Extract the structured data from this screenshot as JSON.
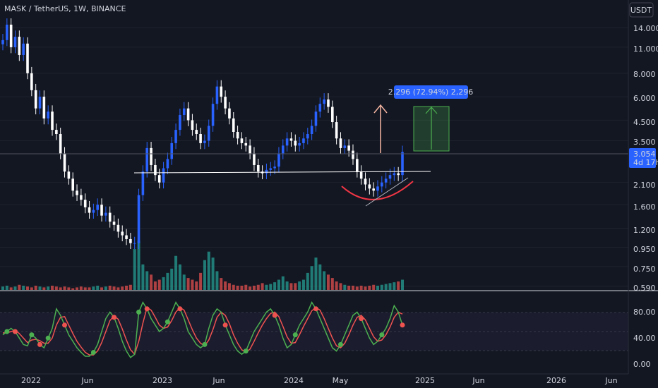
{
  "header": {
    "symbol_title": "MASK / TetherUS, 1W, BINANCE",
    "currency_button": "USDT"
  },
  "price_axis": {
    "ticks": [
      "14.000",
      "11.000",
      "8.000",
      "6.000",
      "4.500",
      "3.500",
      "2.100",
      "1.600",
      "1.200",
      "0.950",
      "0.750",
      "0.590"
    ],
    "scale": "log"
  },
  "last_price": {
    "price": "3.054",
    "countdown": "4d 17h",
    "color": "#2962ff"
  },
  "measure_label": "2.296 (72.94%) 2,296",
  "oscillator_axis": {
    "ticks": [
      "80.00",
      "40.00",
      "0.00"
    ]
  },
  "time_axis": {
    "ticks": [
      "2022",
      "Jun",
      "2023",
      "Jun",
      "2024",
      "May",
      "2025",
      "Jun",
      "2026",
      "Jun"
    ]
  },
  "colors": {
    "background": "#131722",
    "bull_candle": "#2962ff",
    "bear_candle": "#ffffff",
    "volume_up": "#26a69a",
    "volume_down": "#ef5350",
    "osc_k": "#4caf50",
    "osc_d": "#ef5350",
    "target_box": "#4caf50",
    "arrow": "#f7b7a3",
    "curve": "#f23645",
    "support_line": "#ffffff",
    "measure_label_bg": "#2962ff"
  },
  "chart_data": [
    {
      "type": "candlestick",
      "title": "MASK / TetherUS, 1W, BINANCE",
      "yscale": "log",
      "ylim": [
        0.59,
        17.0
      ],
      "x_ticks": [
        "2022",
        "Jun",
        "2023",
        "Jun",
        "2024",
        "May",
        "2025",
        "Jun",
        "2026",
        "Jun"
      ],
      "close_series": [
        12.0,
        14.5,
        11.0,
        12.5,
        10.0,
        11.5,
        8.0,
        6.5,
        5.2,
        6.0,
        4.6,
        5.0,
        4.0,
        3.8,
        3.0,
        2.4,
        2.2,
        1.9,
        1.8,
        1.7,
        1.55,
        1.45,
        1.5,
        1.6,
        1.4,
        1.45,
        1.3,
        1.25,
        1.15,
        1.1,
        1.05,
        1.0,
        1.0,
        1.8,
        2.4,
        3.2,
        2.6,
        2.3,
        2.1,
        2.5,
        2.8,
        3.4,
        4.0,
        4.8,
        5.2,
        4.5,
        4.0,
        3.8,
        3.4,
        3.5,
        4.2,
        5.5,
        6.8,
        6.0,
        5.2,
        4.6,
        3.9,
        3.6,
        3.4,
        3.3,
        3.0,
        2.6,
        2.4,
        2.35,
        2.45,
        2.5,
        2.55,
        3.0,
        3.3,
        3.6,
        3.5,
        3.3,
        3.4,
        3.6,
        3.8,
        4.2,
        5.0,
        5.5,
        5.8,
        5.3,
        4.4,
        3.6,
        3.2,
        3.3,
        3.1,
        2.8,
        2.4,
        2.2,
        2.05,
        1.95,
        1.9,
        2.0,
        2.1,
        2.2,
        2.3,
        2.35,
        2.3,
        3.05
      ],
      "last_price": 3.054,
      "support_level": 2.45,
      "target_box": [
        3.05,
        5.3
      ],
      "measurement": "2.296 (72.94%) 2,296"
    },
    {
      "type": "bar",
      "title": "Volume",
      "values": [
        4,
        5,
        3,
        4,
        6,
        5,
        4,
        3,
        5,
        4,
        3,
        4,
        5,
        4,
        3,
        4,
        3,
        2,
        3,
        4,
        3,
        3,
        4,
        5,
        3,
        4,
        5,
        4,
        3,
        4,
        5,
        6,
        48,
        58,
        30,
        22,
        18,
        10,
        12,
        15,
        20,
        25,
        40,
        30,
        18,
        14,
        12,
        10,
        20,
        35,
        45,
        38,
        22,
        14,
        10,
        8,
        6,
        5,
        5,
        6,
        4,
        5,
        6,
        8,
        6,
        7,
        9,
        12,
        16,
        10,
        8,
        8,
        10,
        12,
        20,
        28,
        38,
        30,
        22,
        18,
        14,
        10,
        8,
        6,
        5,
        5,
        4,
        5,
        4,
        5,
        6,
        5,
        6,
        7,
        8,
        9,
        10,
        12
      ]
    },
    {
      "type": "line",
      "title": "Stochastic RSI",
      "ylim": [
        0,
        100
      ],
      "y_ticks": [
        "80.00",
        "40.00",
        "0.00"
      ],
      "series": [
        {
          "values": [
            45,
            50,
            55,
            50,
            40,
            30,
            28,
            45,
            40,
            30,
            25,
            40,
            55,
            85,
            75,
            60,
            45,
            35,
            25,
            18,
            12,
            12,
            18,
            30,
            50,
            70,
            80,
            72,
            55,
            35,
            20,
            10,
            15,
            80,
            95,
            85,
            70,
            60,
            50,
            55,
            65,
            80,
            95,
            85,
            70,
            50,
            40,
            30,
            25,
            30,
            55,
            75,
            85,
            80,
            60,
            45,
            30,
            20,
            15,
            20,
            35,
            50,
            60,
            70,
            80,
            85,
            75,
            60,
            40,
            25,
            30,
            45,
            60,
            70,
            80,
            95,
            85,
            70,
            55,
            40,
            25,
            20,
            30,
            45,
            60,
            75,
            80,
            70,
            55,
            40,
            30,
            35,
            45,
            55,
            70,
            90,
            80,
            60
          ]
        },
        {
          "values": [
            48,
            48,
            50,
            52,
            47,
            40,
            33,
            37,
            38,
            36,
            32,
            32,
            40,
            60,
            72,
            73,
            60,
            47,
            35,
            26,
            18,
            14,
            14,
            20,
            33,
            50,
            67,
            74,
            69,
            54,
            37,
            22,
            15,
            35,
            63,
            87,
            83,
            72,
            60,
            55,
            57,
            67,
            80,
            87,
            83,
            68,
            53,
            40,
            32,
            28,
            37,
            53,
            72,
            80,
            75,
            62,
            45,
            32,
            22,
            18,
            23,
            35,
            48,
            60,
            70,
            78,
            80,
            73,
            58,
            42,
            32,
            33,
            45,
            58,
            70,
            82,
            87,
            83,
            70,
            55,
            40,
            28,
            25,
            32,
            45,
            60,
            72,
            75,
            68,
            55,
            42,
            35,
            37,
            45,
            57,
            72,
            80,
            77
          ]
        }
      ]
    }
  ]
}
